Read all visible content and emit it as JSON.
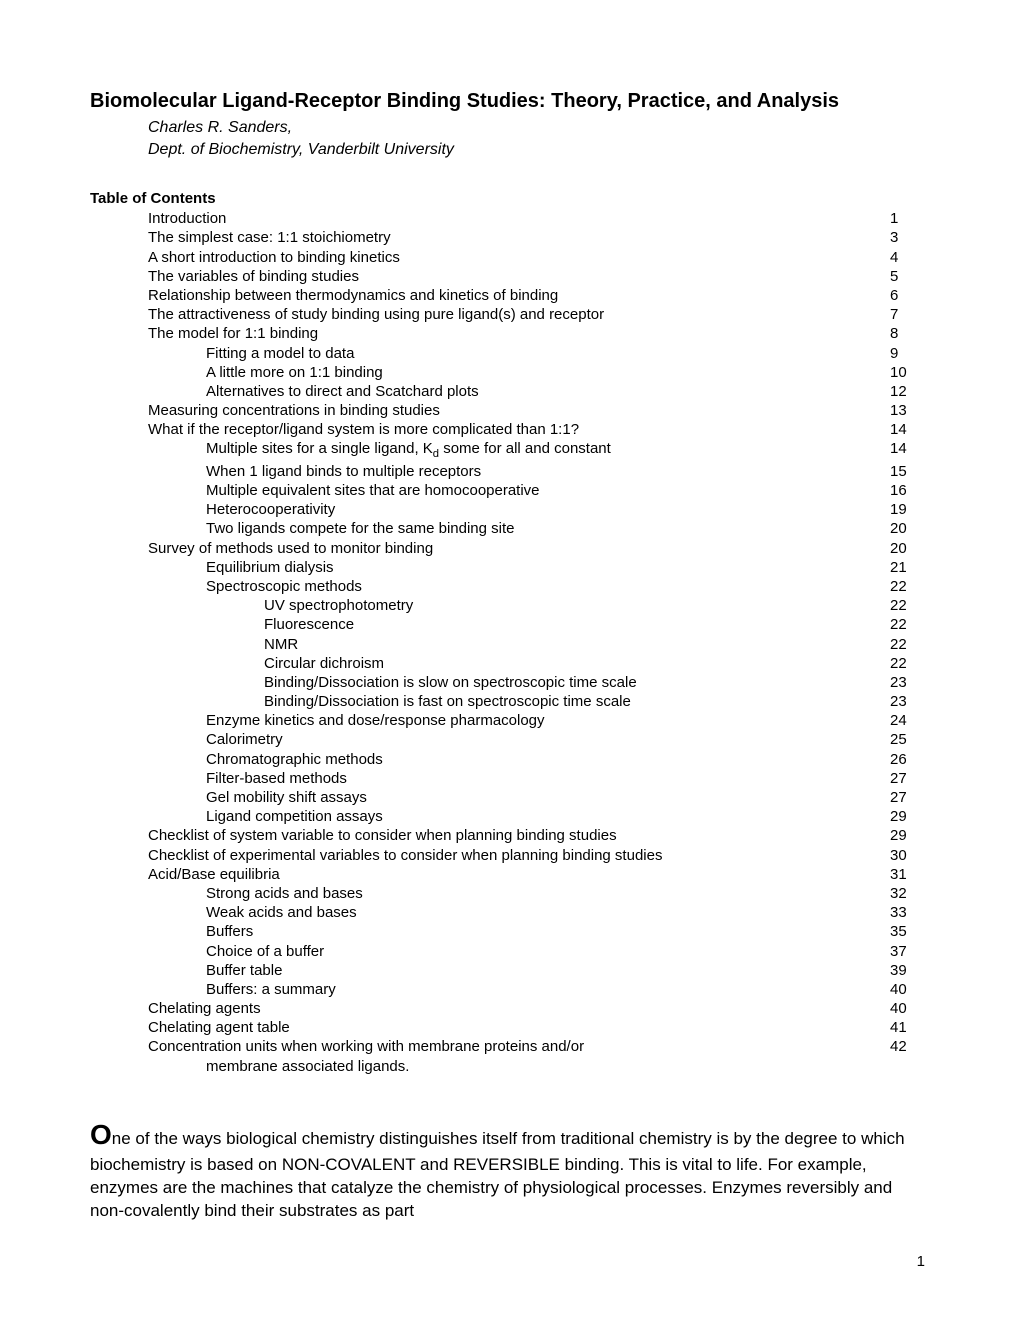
{
  "title": "Biomolecular Ligand-Receptor Binding Studies: Theory, Practice, and Analysis",
  "author": "Charles R. Sanders,",
  "affiliation": "Dept. of Biochemistry, Vanderbilt University",
  "toc_heading": "Table of Contents",
  "toc": [
    {
      "label": "Introduction",
      "page": "1",
      "indent": 0
    },
    {
      "label": "The simplest case: 1:1 stoichiometry",
      "page": "3",
      "indent": 0
    },
    {
      "label": "A short introduction to binding kinetics",
      "page": "4",
      "indent": 0
    },
    {
      "label": "The variables of binding studies",
      "page": "5",
      "indent": 0
    },
    {
      "label": "Relationship between thermodynamics and kinetics of binding",
      "page": "6",
      "indent": 0
    },
    {
      "label": "The attractiveness of study binding using pure ligand(s) and receptor",
      "page": "7",
      "indent": 0
    },
    {
      "label": "The model for 1:1 binding",
      "page": "8",
      "indent": 0
    },
    {
      "label": "Fitting a model to data",
      "page": "9",
      "indent": 1
    },
    {
      "label": "A little more on 1:1 binding",
      "page": "10",
      "indent": 1
    },
    {
      "label": "Alternatives to direct and Scatchard plots",
      "page": "12",
      "indent": 1
    },
    {
      "label": "Measuring concentrations in binding studies",
      "page": "13",
      "indent": 0
    },
    {
      "label": "What if the receptor/ligand system is more complicated than 1:1?",
      "page": "14",
      "indent": 0
    },
    {
      "label_html": "Multiple sites for a single ligand, K<sub>d</sub> some for all and constant",
      "page": "14",
      "indent": 1
    },
    {
      "label": "When 1 ligand binds to multiple receptors",
      "page": "15",
      "indent": 1
    },
    {
      "label": "Multiple equivalent sites that are homocooperative",
      "page": "16",
      "indent": 1
    },
    {
      "label": "Heterocooperativity",
      "page": "19",
      "indent": 1
    },
    {
      "label": "Two ligands compete for the same binding site",
      "page": "20",
      "indent": 1
    },
    {
      "label": "Survey of methods used to monitor binding",
      "page": "20",
      "indent": 0
    },
    {
      "label": "Equilibrium dialysis",
      "page": "21",
      "indent": 1
    },
    {
      "label": "Spectroscopic methods",
      "page": "22",
      "indent": 1
    },
    {
      "label": "UV spectrophotometry",
      "page": "22",
      "indent": 2
    },
    {
      "label": "Fluorescence",
      "page": "22",
      "indent": 2
    },
    {
      "label": "NMR",
      "page": "22",
      "indent": 2
    },
    {
      "label": "Circular dichroism",
      "page": "22",
      "indent": 2
    },
    {
      "label": "Binding/Dissociation is slow on spectroscopic time scale",
      "page": "23",
      "indent": 2
    },
    {
      "label": "Binding/Dissociation is fast on spectroscopic time scale",
      "page": "23",
      "indent": 2
    },
    {
      "label": "Enzyme kinetics and dose/response pharmacology",
      "page": "24",
      "indent": 1
    },
    {
      "label": "Calorimetry",
      "page": "25",
      "indent": 1
    },
    {
      "label": "Chromatographic methods",
      "page": "26",
      "indent": 1
    },
    {
      "label": "Filter-based methods",
      "page": "27",
      "indent": 1
    },
    {
      "label": "Gel mobility shift assays",
      "page": "27",
      "indent": 1
    },
    {
      "label": "Ligand competition assays",
      "page": "29",
      "indent": 1
    },
    {
      "label": "Checklist of system variable to consider when planning binding studies",
      "page": "29",
      "indent": 0
    },
    {
      "label": "Checklist of experimental variables to consider when planning binding studies",
      "page": "30",
      "indent": 0
    },
    {
      "label": "Acid/Base equilibria",
      "page": "31",
      "indent": 0
    },
    {
      "label": "Strong acids and bases",
      "page": "32",
      "indent": 1
    },
    {
      "label": "Weak acids and bases",
      "page": "33",
      "indent": 1
    },
    {
      "label": "Buffers",
      "page": "35",
      "indent": 1
    },
    {
      "label": "Choice of a buffer",
      "page": "37",
      "indent": 1
    },
    {
      "label": "Buffer table",
      "page": "39",
      "indent": 1
    },
    {
      "label": "Buffers: a summary",
      "page": "40",
      "indent": 1
    },
    {
      "label": "Chelating agents",
      "page": "40",
      "indent": 0
    },
    {
      "label": "Chelating agent table",
      "page": "41",
      "indent": 0
    },
    {
      "label": "Concentration units when working with membrane proteins and/or",
      "page": "42",
      "indent": 0
    },
    {
      "label": "membrane associated ligands.",
      "page": "",
      "indent": 1,
      "continuation": true
    }
  ],
  "body_dropcap": "O",
  "body_rest": "ne of the ways biological chemistry distinguishes itself from traditional chemistry is by the degree to which biochemistry is based on NON-COVALENT and REVERSIBLE binding.  This is vital to life.  For example, enzymes are the machines that catalyze the chemistry of physiological processes.  Enzymes reversibly and non-covalently bind their substrates as part",
  "page_number": "1"
}
